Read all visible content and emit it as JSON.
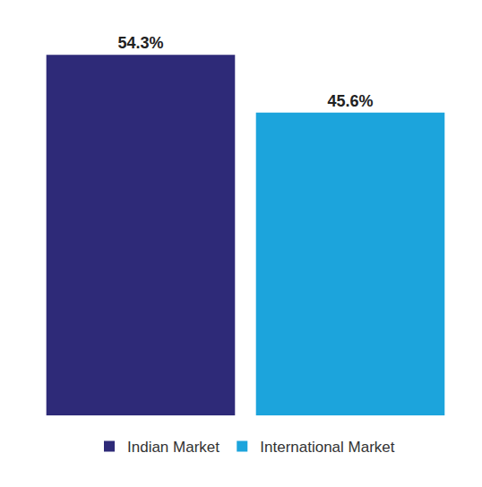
{
  "chart_data": {
    "type": "bar",
    "categories": [
      "Indian Market",
      "International Market"
    ],
    "values": [
      54.3,
      45.6
    ],
    "value_labels": [
      "54.3%",
      "45.6%"
    ],
    "colors": [
      "#2e2a78",
      "#1ca4dc"
    ],
    "data_labels": true,
    "tick_labels": false,
    "legend": "bottom"
  }
}
